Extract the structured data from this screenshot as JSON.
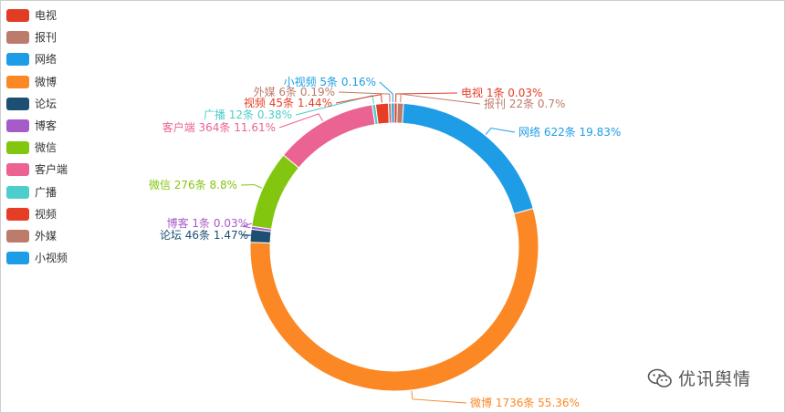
{
  "chart_data": {
    "type": "pie",
    "variant": "donut",
    "legend_position": "left",
    "series": [
      {
        "name": "电视",
        "value": 1,
        "percent": "0.03%",
        "label": "电视 1条  0.03%",
        "color": "#e23c25"
      },
      {
        "name": "报刊",
        "value": 22,
        "percent": "0.7%",
        "label": "报刊 22条  0.7%",
        "color": "#bd7b6b"
      },
      {
        "name": "网络",
        "value": 622,
        "percent": "19.83%",
        "label": "网络 622条  19.83%",
        "color": "#1e9ce6"
      },
      {
        "name": "微博",
        "value": 1736,
        "percent": "55.36%",
        "label": "微博 1736条  55.36%",
        "color": "#fb8825"
      },
      {
        "name": "论坛",
        "value": 46,
        "percent": "1.47%",
        "label": "论坛 46条  1.47%",
        "color": "#1c4f72"
      },
      {
        "name": "博客",
        "value": 1,
        "percent": "0.03%",
        "label": "博客 1条  0.03%",
        "color": "#a65cc8"
      },
      {
        "name": "微信",
        "value": 276,
        "percent": "8.8%",
        "label": "微信 276条  8.8%",
        "color": "#83c60f"
      },
      {
        "name": "客户端",
        "value": 364,
        "percent": "11.61%",
        "label": "客户端 364条  11.61%",
        "color": "#ea6392"
      },
      {
        "name": "广播",
        "value": 12,
        "percent": "0.38%",
        "label": "广播 12条  0.38%",
        "color": "#4ccfcc"
      },
      {
        "name": "视频",
        "value": 45,
        "percent": "1.44%",
        "label": "视频 45条  1.44%",
        "color": "#e63e26"
      },
      {
        "name": "外媒",
        "value": 6,
        "percent": "0.19%",
        "label": "外媒 6条  0.19%",
        "color": "#bd7b6b"
      },
      {
        "name": "小视频",
        "value": 5,
        "percent": "0.16%",
        "label": "小视频 5条  0.16%",
        "color": "#1e9ce6"
      }
    ]
  },
  "watermark": {
    "text": "优讯舆情",
    "icon": "wechat-icon"
  }
}
